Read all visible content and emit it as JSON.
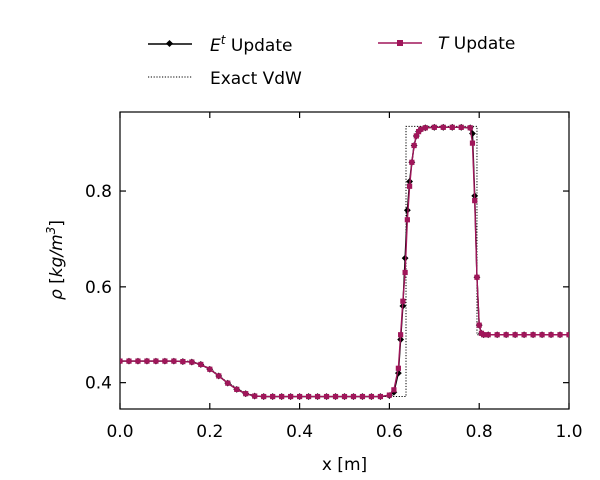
{
  "chart_data": {
    "type": "line",
    "xlabel": "x [m]",
    "ylabel": "ρ [kg/m³]",
    "xlim": [
      0.0,
      1.0
    ],
    "ylim": [
      0.345,
      0.965
    ],
    "xticks": [
      "0.0",
      "0.2",
      "0.4",
      "0.6",
      "0.8",
      "1.0"
    ],
    "yticks": [
      "0.4",
      "0.6",
      "0.8"
    ],
    "legend_placement": "above plot",
    "series": [
      {
        "name": "E^t Update",
        "color": "#000000",
        "marker": "diamond",
        "linestyle": "solid",
        "x": [
          0.0,
          0.02,
          0.04,
          0.06,
          0.08,
          0.1,
          0.12,
          0.14,
          0.16,
          0.18,
          0.2,
          0.22,
          0.24,
          0.26,
          0.28,
          0.3,
          0.32,
          0.34,
          0.36,
          0.38,
          0.4,
          0.42,
          0.44,
          0.46,
          0.48,
          0.5,
          0.52,
          0.54,
          0.56,
          0.58,
          0.6,
          0.61,
          0.62,
          0.625,
          0.63,
          0.635,
          0.64,
          0.645,
          0.65,
          0.655,
          0.66,
          0.665,
          0.67,
          0.68,
          0.7,
          0.72,
          0.74,
          0.76,
          0.78,
          0.785,
          0.79,
          0.795,
          0.8,
          0.805,
          0.81,
          0.82,
          0.84,
          0.86,
          0.88,
          0.9,
          0.92,
          0.94,
          0.96,
          0.98,
          1.0
        ],
        "y": [
          0.445,
          0.445,
          0.445,
          0.445,
          0.445,
          0.445,
          0.445,
          0.444,
          0.443,
          0.438,
          0.428,
          0.414,
          0.399,
          0.386,
          0.377,
          0.372,
          0.371,
          0.371,
          0.371,
          0.371,
          0.371,
          0.371,
          0.371,
          0.371,
          0.371,
          0.371,
          0.371,
          0.371,
          0.371,
          0.371,
          0.373,
          0.38,
          0.42,
          0.49,
          0.56,
          0.66,
          0.76,
          0.82,
          0.86,
          0.895,
          0.915,
          0.924,
          0.929,
          0.932,
          0.933,
          0.933,
          0.933,
          0.933,
          0.932,
          0.92,
          0.79,
          0.62,
          0.52,
          0.503,
          0.5,
          0.5,
          0.5,
          0.5,
          0.5,
          0.5,
          0.5,
          0.5,
          0.5,
          0.5,
          0.5
        ]
      },
      {
        "name": "T Update",
        "color": "#a0165a",
        "marker": "square",
        "linestyle": "solid",
        "x": [
          0.0,
          0.02,
          0.04,
          0.06,
          0.08,
          0.1,
          0.12,
          0.14,
          0.16,
          0.18,
          0.2,
          0.22,
          0.24,
          0.26,
          0.28,
          0.3,
          0.32,
          0.34,
          0.36,
          0.38,
          0.4,
          0.42,
          0.44,
          0.46,
          0.48,
          0.5,
          0.52,
          0.54,
          0.56,
          0.58,
          0.6,
          0.61,
          0.62,
          0.625,
          0.63,
          0.635,
          0.64,
          0.645,
          0.65,
          0.655,
          0.66,
          0.665,
          0.67,
          0.68,
          0.7,
          0.72,
          0.74,
          0.76,
          0.78,
          0.785,
          0.79,
          0.795,
          0.8,
          0.805,
          0.81,
          0.82,
          0.84,
          0.86,
          0.88,
          0.9,
          0.92,
          0.94,
          0.96,
          0.98,
          1.0
        ],
        "y": [
          0.445,
          0.445,
          0.445,
          0.445,
          0.445,
          0.445,
          0.445,
          0.444,
          0.443,
          0.438,
          0.428,
          0.414,
          0.399,
          0.386,
          0.377,
          0.372,
          0.371,
          0.371,
          0.371,
          0.371,
          0.371,
          0.371,
          0.371,
          0.371,
          0.371,
          0.371,
          0.371,
          0.371,
          0.371,
          0.371,
          0.374,
          0.385,
          0.43,
          0.5,
          0.57,
          0.63,
          0.74,
          0.81,
          0.86,
          0.895,
          0.915,
          0.924,
          0.929,
          0.932,
          0.933,
          0.933,
          0.933,
          0.933,
          0.932,
          0.9,
          0.78,
          0.62,
          0.52,
          0.503,
          0.5,
          0.5,
          0.5,
          0.5,
          0.5,
          0.5,
          0.5,
          0.5,
          0.5,
          0.5,
          0.5
        ]
      },
      {
        "name": "Exact VdW",
        "color": "#000000",
        "marker": "none",
        "linestyle": "dotted",
        "x": [
          0.0,
          0.16,
          0.2,
          0.24,
          0.28,
          0.31,
          0.637,
          0.637,
          0.795,
          0.795,
          1.0
        ],
        "y": [
          0.445,
          0.445,
          0.43,
          0.4,
          0.378,
          0.371,
          0.371,
          0.935,
          0.935,
          0.5,
          0.5
        ]
      }
    ]
  }
}
